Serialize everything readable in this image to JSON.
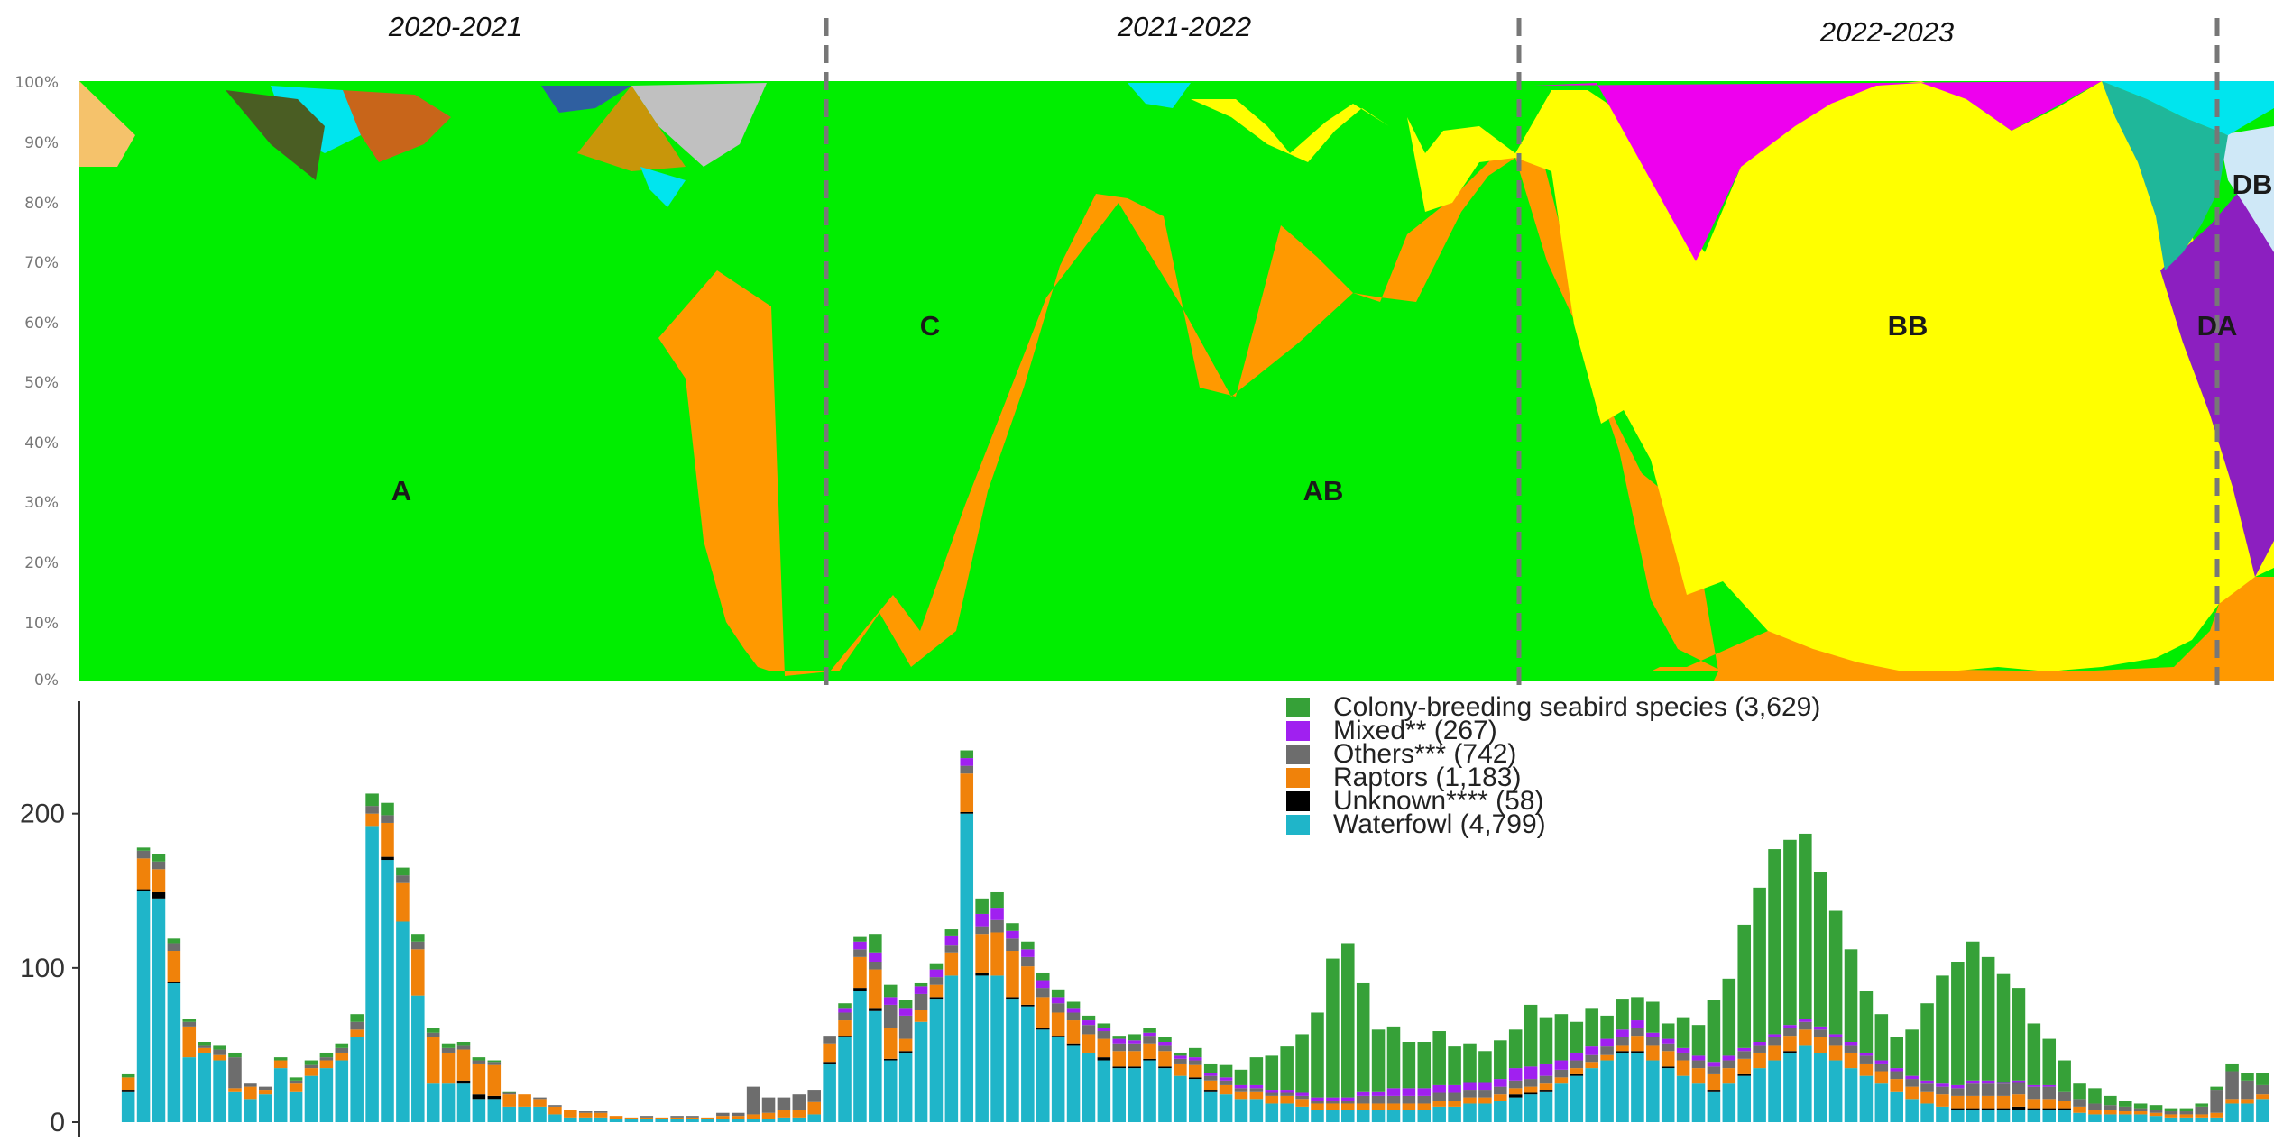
{
  "seasons": [
    "2020-2021",
    "2021-2022",
    "2022-2023"
  ],
  "top_chart": {
    "type": "area",
    "y_tick_labels": [
      "100%",
      "90%",
      "80%",
      "70%",
      "60%",
      "50%",
      "40%",
      "30%",
      "20%",
      "10%",
      "0%"
    ],
    "clade_labels": [
      "A",
      "C",
      "AB",
      "BB",
      "DA",
      "DB"
    ],
    "colors": {
      "A": "#5b9bd5",
      "C": "#00ee00",
      "AB": "#ff9900",
      "BB": "#ffff00",
      "DA": "#8c1fc0",
      "DB": "#cfe8f7",
      "cyan": "#00e5ee",
      "magenta": "#ee00ee",
      "teal": "#1fb79a",
      "grey": "#c0c0c0",
      "brown": "#b5651d",
      "olive": "#4a5d23"
    }
  },
  "chart_data": {
    "type": "bar",
    "stacked": true,
    "ylim": [
      0,
      260
    ],
    "y_ticks": [
      0,
      100,
      200
    ],
    "y_tick_labels": [
      "0",
      "100",
      "200"
    ],
    "legend_position": "top-center",
    "series": [
      {
        "name": "Colony-breeding seabird species (3,629)",
        "color": "#36a138",
        "values": [
          0,
          2,
          2,
          5,
          3,
          2,
          2,
          3,
          3,
          0,
          0,
          2,
          2,
          3,
          3,
          3,
          5,
          8,
          8,
          5,
          5,
          3,
          3,
          2,
          2,
          1,
          1,
          0,
          0,
          0,
          0,
          0,
          0,
          0,
          0,
          0,
          0,
          0,
          0,
          0,
          0,
          0,
          0,
          0,
          0,
          0,
          0,
          0,
          3,
          3,
          12,
          8,
          5,
          2,
          4,
          4,
          5,
          10,
          10,
          5,
          5,
          5,
          5,
          4,
          3,
          3,
          2,
          4,
          3,
          3,
          2,
          6,
          6,
          8,
          10,
          18,
          22,
          28,
          38,
          55,
          90,
          100,
          70,
          40,
          40,
          30,
          30,
          35,
          25,
          25,
          20,
          25,
          25,
          40,
          30,
          30,
          20,
          25,
          15,
          20,
          15,
          20,
          10,
          20,
          20,
          40,
          50,
          80,
          100,
          120,
          120,
          120,
          100,
          80,
          60,
          40,
          30,
          20,
          30,
          50,
          70,
          80,
          90,
          80,
          70,
          60,
          40,
          30,
          20,
          10,
          10,
          6,
          4,
          3,
          3,
          2,
          2,
          2,
          2,
          5,
          5,
          8
        ]
      },
      {
        "name": "Mixed** (267)",
        "color": "#a020f0",
        "values": [
          0,
          0,
          0,
          0,
          0,
          0,
          0,
          0,
          0,
          0,
          0,
          0,
          0,
          0,
          0,
          0,
          0,
          0,
          0,
          0,
          0,
          0,
          0,
          0,
          0,
          0,
          0,
          0,
          0,
          0,
          0,
          0,
          0,
          0,
          0,
          0,
          0,
          0,
          0,
          0,
          0,
          0,
          0,
          0,
          0,
          0,
          0,
          0,
          3,
          5,
          6,
          5,
          5,
          5,
          5,
          6,
          5,
          8,
          8,
          5,
          5,
          5,
          4,
          3,
          3,
          2,
          3,
          2,
          2,
          2,
          2,
          2,
          2,
          2,
          2,
          2,
          2,
          2,
          2,
          2,
          2,
          2,
          3,
          3,
          5,
          5,
          5,
          5,
          5,
          5,
          5,
          5,
          8,
          8,
          8,
          6,
          5,
          5,
          5,
          5,
          5,
          3,
          3,
          3,
          3,
          3,
          3,
          2,
          2,
          2,
          2,
          2,
          2,
          2,
          2,
          2,
          2,
          2,
          2,
          2,
          2,
          2,
          2,
          2,
          1,
          1,
          1,
          1,
          0,
          0,
          0,
          0,
          0,
          0,
          0,
          0,
          0,
          0,
          0,
          0,
          0,
          0,
          0
        ]
      },
      {
        "name": "Others*** (742)",
        "color": "#6d6d6d",
        "values": [
          0,
          0,
          5,
          5,
          5,
          3,
          2,
          3,
          20,
          2,
          2,
          0,
          2,
          2,
          2,
          3,
          5,
          5,
          5,
          5,
          5,
          3,
          3,
          3,
          2,
          2,
          1,
          0,
          1,
          1,
          0,
          1,
          1,
          0,
          0,
          1,
          0,
          1,
          1,
          0,
          2,
          2,
          18,
          10,
          8,
          10,
          8,
          5,
          5,
          5,
          5,
          15,
          15,
          10,
          5,
          5,
          5,
          5,
          8,
          8,
          6,
          6,
          6,
          5,
          6,
          5,
          5,
          5,
          5,
          4,
          3,
          3,
          3,
          3,
          2,
          2,
          2,
          2,
          2,
          2,
          2,
          2,
          5,
          5,
          5,
          5,
          5,
          5,
          5,
          5,
          5,
          5,
          5,
          5,
          5,
          5,
          5,
          5,
          5,
          5,
          5,
          5,
          5,
          5,
          5,
          5,
          5,
          5,
          5,
          5,
          5,
          5,
          5,
          5,
          5,
          5,
          5,
          5,
          5,
          5,
          5,
          5,
          8,
          8,
          8,
          8,
          8,
          8,
          6,
          5,
          4,
          3,
          3,
          2,
          2,
          2,
          2,
          5,
          15,
          18,
          12,
          6,
          3,
          4
        ]
      },
      {
        "name": "Raptors (1,183)",
        "color": "#f0820a",
        "values": [
          0,
          8,
          20,
          15,
          20,
          20,
          3,
          4,
          2,
          8,
          3,
          5,
          5,
          5,
          5,
          5,
          5,
          8,
          22,
          25,
          30,
          30,
          20,
          20,
          20,
          20,
          8,
          8,
          5,
          5,
          5,
          3,
          3,
          2,
          1,
          1,
          1,
          1,
          1,
          1,
          2,
          2,
          3,
          4,
          5,
          5,
          8,
          12,
          10,
          20,
          25,
          20,
          8,
          8,
          8,
          15,
          25,
          25,
          28,
          30,
          25,
          20,
          15,
          15,
          12,
          12,
          10,
          10,
          10,
          10,
          8,
          8,
          6,
          6,
          5,
          5,
          5,
          5,
          5,
          4,
          4,
          4,
          4,
          4,
          4,
          4,
          4,
          4,
          4,
          4,
          4,
          4,
          4,
          4,
          4,
          4,
          4,
          4,
          4,
          4,
          10,
          10,
          10,
          10,
          10,
          10,
          10,
          10,
          10,
          10,
          10,
          10,
          10,
          10,
          10,
          8,
          8,
          8,
          8,
          8,
          8,
          8,
          8,
          8,
          8,
          8,
          6,
          6,
          5,
          4,
          3,
          3,
          2,
          2,
          2,
          2,
          2,
          2,
          3,
          3,
          3,
          3,
          3,
          3
        ]
      },
      {
        "name": "Unknown**** (58)",
        "color": "#000000",
        "values": [
          0,
          1,
          1,
          4,
          1,
          0,
          0,
          0,
          0,
          0,
          0,
          0,
          0,
          0,
          0,
          0,
          0,
          0,
          2,
          0,
          0,
          0,
          0,
          2,
          3,
          2,
          0,
          0,
          0,
          0,
          0,
          0,
          0,
          0,
          0,
          0,
          0,
          0,
          0,
          0,
          0,
          0,
          0,
          0,
          0,
          0,
          0,
          1,
          1,
          2,
          2,
          1,
          1,
          0,
          1,
          0,
          1,
          2,
          0,
          1,
          1,
          1,
          1,
          1,
          0,
          2,
          1,
          1,
          1,
          1,
          0,
          1,
          1,
          0,
          0,
          0,
          0,
          0,
          0,
          0,
          0,
          0,
          0,
          0,
          0,
          0,
          0,
          0,
          0,
          0,
          0,
          0,
          2,
          1,
          1,
          0,
          1,
          0,
          0,
          1,
          1,
          0,
          1,
          0,
          0,
          1,
          0,
          1,
          0,
          0,
          1,
          0,
          0,
          0,
          0,
          0,
          0,
          0,
          0,
          0,
          0,
          1,
          1,
          1,
          1,
          2,
          1,
          1,
          1,
          0,
          0,
          0,
          0,
          0,
          0,
          0,
          0,
          0,
          0,
          0,
          0,
          0,
          0
        ]
      },
      {
        "name": "Waterfowl (4,799)",
        "color": "#1fb5c9",
        "values": [
          0,
          20,
          150,
          145,
          90,
          42,
          45,
          40,
          20,
          15,
          18,
          35,
          20,
          30,
          35,
          40,
          55,
          192,
          170,
          130,
          82,
          25,
          25,
          25,
          15,
          15,
          10,
          10,
          10,
          5,
          3,
          3,
          3,
          2,
          2,
          2,
          2,
          2,
          2,
          2,
          2,
          2,
          2,
          2,
          3,
          3,
          5,
          38,
          55,
          85,
          72,
          40,
          45,
          65,
          80,
          95,
          200,
          95,
          95,
          80,
          75,
          60,
          55,
          50,
          45,
          40,
          35,
          35,
          40,
          35,
          30,
          28,
          20,
          18,
          15,
          15,
          12,
          12,
          10,
          8,
          8,
          8,
          8,
          8,
          8,
          8,
          8,
          10,
          10,
          12,
          12,
          14,
          16,
          18,
          20,
          25,
          30,
          35,
          40,
          45,
          45,
          40,
          35,
          30,
          25,
          20,
          25,
          30,
          35,
          40,
          45,
          50,
          45,
          40,
          35,
          30,
          25,
          20,
          15,
          12,
          10,
          8,
          8,
          8,
          8,
          8,
          8,
          8,
          8,
          6,
          5,
          5,
          5,
          5,
          4,
          3,
          3,
          3,
          3,
          12,
          12,
          15,
          15
        ]
      }
    ]
  }
}
